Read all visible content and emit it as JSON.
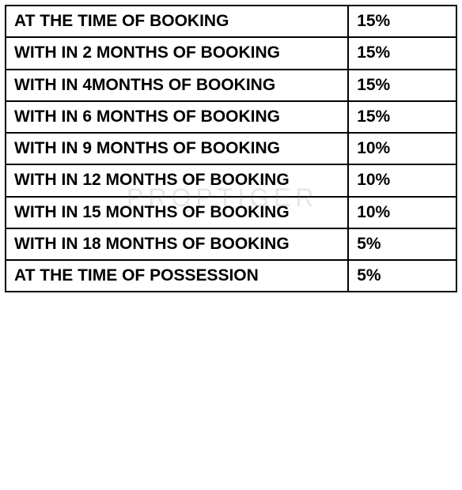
{
  "table": {
    "type": "table",
    "border_color": "#000000",
    "background_color": "#ffffff",
    "text_color": "#000000",
    "font_weight": 900,
    "font_size": 21,
    "columns": [
      {
        "key": "description",
        "width_pct": 76,
        "align": "left"
      },
      {
        "key": "percentage",
        "width_pct": 24,
        "align": "left"
      }
    ],
    "rows": [
      {
        "description": "AT THE TIME OF BOOKING",
        "percentage": "15%"
      },
      {
        "description": "WITH IN 2 MONTHS OF BOOKING",
        "percentage": "15%"
      },
      {
        "description": "WITH IN 4MONTHS OF BOOKING",
        "percentage": "15%"
      },
      {
        "description": "WITH IN 6 MONTHS OF BOOKING",
        "percentage": "15%"
      },
      {
        "description": "WITH IN 9 MONTHS OF BOOKING",
        "percentage": "10%"
      },
      {
        "description": "WITH IN 12 MONTHS OF BOOKING",
        "percentage": "10%"
      },
      {
        "description": "WITH IN 15 MONTHS OF BOOKING",
        "percentage": "10%"
      },
      {
        "description": "WITH IN 18 MONTHS OF BOOKING",
        "percentage": "5%"
      },
      {
        "description": "AT THE TIME OF POSSESSION",
        "percentage": "5%"
      }
    ]
  },
  "watermark": {
    "text": "PROPTIGER",
    "color": "rgba(120,120,120,0.18)",
    "font_size": 32,
    "letter_spacing": 6
  }
}
